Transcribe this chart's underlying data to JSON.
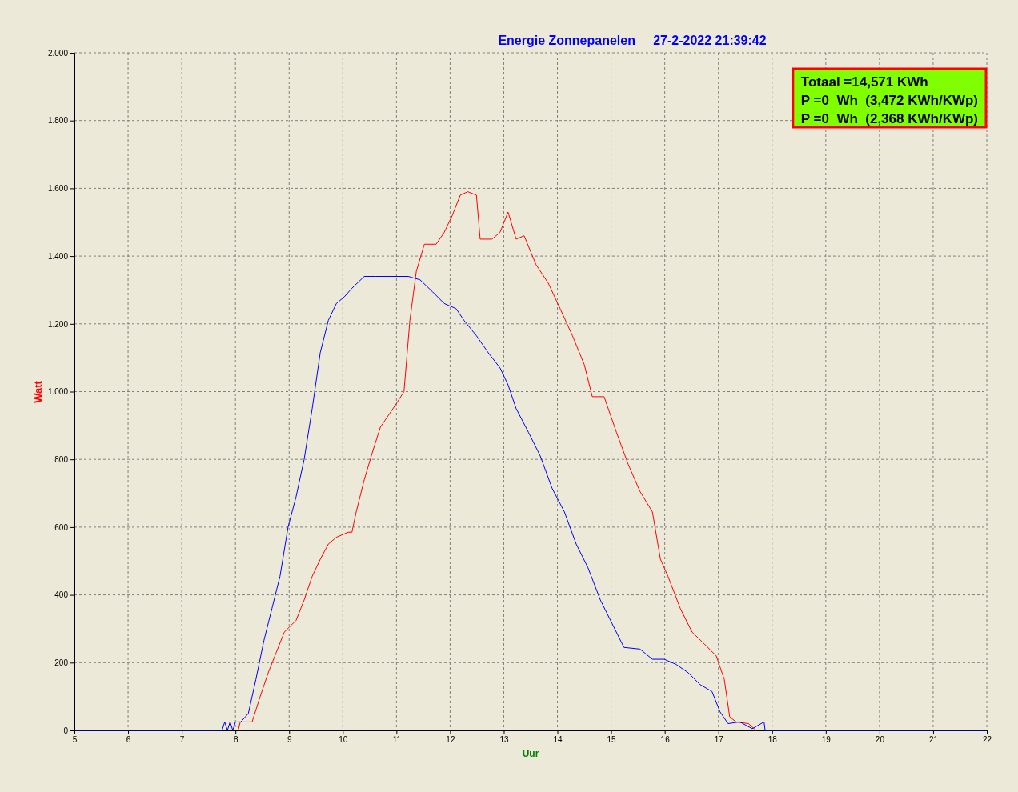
{
  "chart_data": {
    "type": "line",
    "title": "Energie Zonnepanelen     27-2-2022 21:39:42",
    "xlabel": "Uur",
    "ylabel": "Watt",
    "annotations": [
      "Totaal =14,571 KWh",
      "P =0  Wh  (3,472 KWh/KWp)",
      "P =0  Wh  (2,368 KWh/KWp)"
    ],
    "xlim": [
      5,
      22
    ],
    "xticks": [
      5,
      6,
      7,
      8,
      9,
      10,
      11,
      12,
      13,
      14,
      15,
      16,
      17,
      18,
      19,
      20,
      21,
      22
    ],
    "ylim": [
      0,
      2000
    ],
    "yticks": [
      0,
      200,
      400,
      600,
      800,
      {
        "value": 1000,
        "label": "1.000"
      },
      {
        "value": 1200,
        "label": "1.200"
      },
      {
        "value": 1400,
        "label": "1.400"
      },
      {
        "value": 1600,
        "label": "1.600"
      },
      {
        "value": 1800,
        "label": "1.800"
      },
      {
        "value": 2000,
        "label": "2.000"
      }
    ],
    "grid": true,
    "marker": "none",
    "line_style": "solid",
    "series": [
      {
        "color": "#ff0000",
        "x": [
          8.05,
          8.09,
          8.31,
          8.46,
          8.61,
          8.76,
          8.91,
          9.13,
          9.28,
          9.43,
          9.58,
          9.73,
          9.88,
          10.1,
          10.17,
          10.25,
          10.4,
          10.55,
          10.7,
          10.85,
          11.0,
          11.14,
          11.25,
          11.37,
          11.52,
          11.74,
          11.89,
          12.04,
          12.19,
          12.33,
          12.49,
          12.56,
          12.78,
          12.93,
          13.08,
          13.23,
          13.38,
          13.6,
          13.83,
          14.05,
          14.28,
          14.5,
          14.65,
          14.87,
          15.1,
          15.32,
          15.54,
          15.77,
          15.92,
          16.06,
          16.29,
          16.51,
          16.74,
          16.96,
          17.11,
          17.21,
          17.33,
          17.56,
          17.7
        ],
        "values": [
          0,
          25,
          25,
          100,
          170,
          230,
          290,
          325,
          385,
          455,
          505,
          550,
          570,
          585,
          585,
          645,
          740,
          820,
          895,
          930,
          965,
          1000,
          1210,
          1355,
          1435,
          1435,
          1470,
          1520,
          1580,
          1590,
          1580,
          1450,
          1450,
          1470,
          1530,
          1450,
          1460,
          1375,
          1320,
          1245,
          1165,
          1080,
          985,
          985,
          880,
          785,
          705,
          645,
          505,
          455,
          360,
          290,
          255,
          220,
          150,
          40,
          25,
          20,
          0
        ]
      },
      {
        "color": "#0000ff",
        "x": [
          5,
          7.75,
          7.8,
          7.85,
          7.9,
          7.95,
          8.0,
          8.1,
          8.24,
          8.38,
          8.53,
          8.68,
          8.83,
          8.98,
          9.13,
          9.28,
          9.43,
          9.58,
          9.73,
          9.88,
          10.03,
          10.17,
          10.4,
          10.62,
          10.92,
          11.22,
          11.44,
          11.67,
          11.89,
          12.11,
          12.26,
          12.49,
          12.71,
          12.93,
          13.08,
          13.23,
          13.46,
          13.68,
          13.9,
          14.13,
          14.35,
          14.57,
          14.8,
          15.02,
          15.24,
          15.54,
          15.77,
          15.99,
          16.21,
          16.44,
          16.66,
          16.88,
          17.03,
          17.18,
          17.4,
          17.63,
          17.85,
          17.87,
          22
        ],
        "values": [
          0,
          0,
          25,
          0,
          25,
          0,
          25,
          25,
          50,
          150,
          265,
          360,
          455,
          600,
          690,
          800,
          950,
          1115,
          1210,
          1260,
          1280,
          1305,
          1340,
          1340,
          1340,
          1340,
          1330,
          1295,
          1260,
          1245,
          1210,
          1165,
          1115,
          1070,
          1020,
          950,
          880,
          810,
          715,
          645,
          550,
          480,
          385,
          315,
          245,
          240,
          210,
          210,
          195,
          170,
          135,
          115,
          55,
          20,
          25,
          5,
          25,
          0,
          0
        ]
      }
    ]
  }
}
